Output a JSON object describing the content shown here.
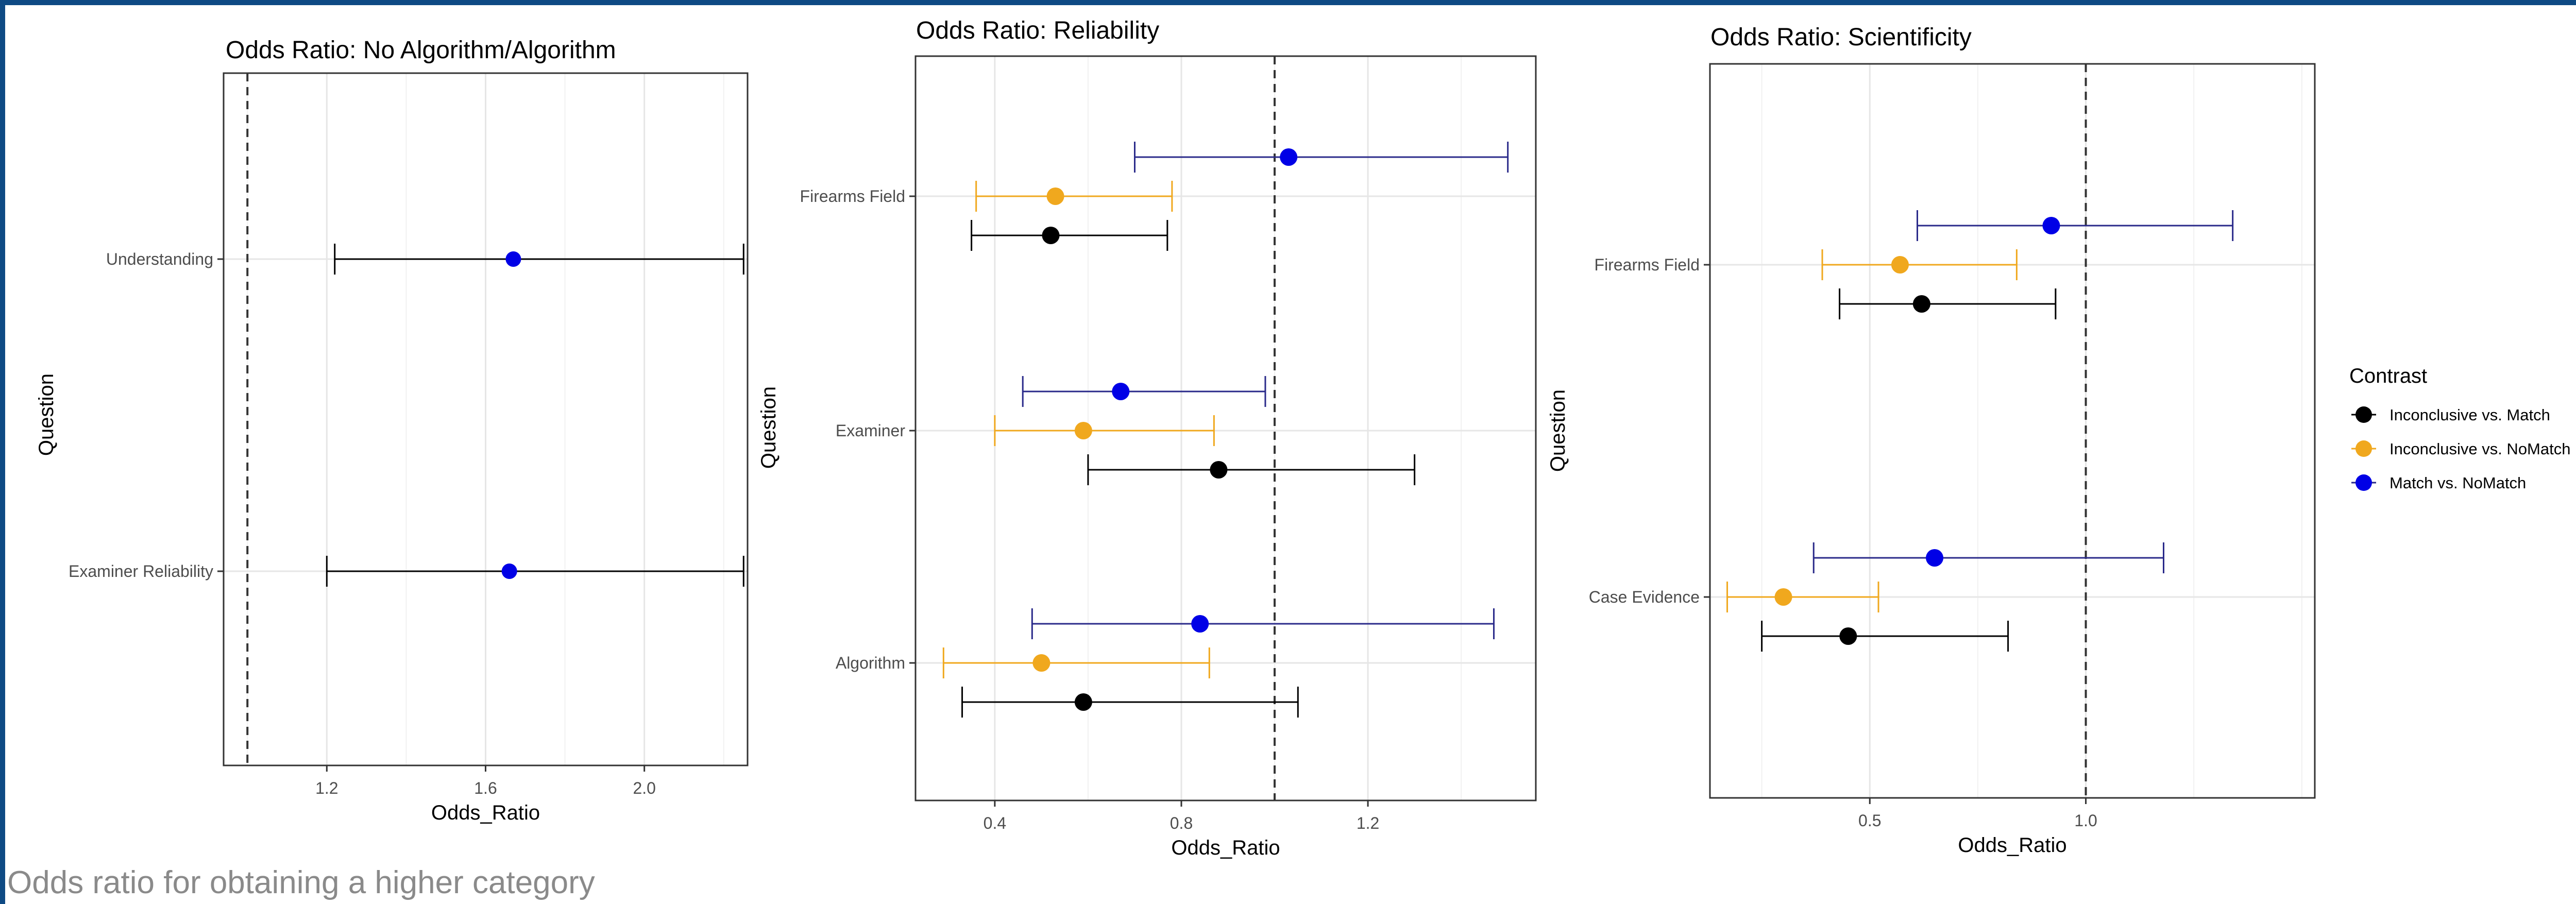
{
  "caption": "Odds ratio for obtaining a higher category",
  "colors": {
    "frame": "#0e4a84",
    "Inconclusive vs. Match": "#000000",
    "Inconclusive vs. NoMatch": "#f0a81e",
    "Match vs. NoMatch": "#0000e6",
    "Algorithm contrast": "#0000e6"
  },
  "legend": {
    "title": "Contrast",
    "placement": "right",
    "items": [
      "Inconclusive vs. Match",
      "Inconclusive vs. NoMatch",
      "Match vs. NoMatch"
    ]
  },
  "chart_data": [
    {
      "type": "forest",
      "title": "Odds Ratio: No Algorithm/Algorithm",
      "xlabel": "Odds_Ratio",
      "ylabel": "Question",
      "xlim": [
        0.94,
        2.26
      ],
      "xticks": [
        1.2,
        1.6,
        2.0
      ],
      "xtick_labels": [
        "1.2",
        "1.6",
        "2.0"
      ],
      "reference_line": 1.0,
      "grid": true,
      "categories": [
        "Examiner Reliability",
        "Understanding"
      ],
      "series": [
        {
          "values": [
            {
              "category": "Examiner Reliability",
              "estimate": 1.66,
              "lower": 1.2,
              "upper": 2.25
            },
            {
              "category": "Understanding",
              "estimate": 1.67,
              "lower": 1.22,
              "upper": 2.25
            }
          ]
        }
      ]
    },
    {
      "type": "forest",
      "title": "Odds Ratio: Reliability",
      "xlabel": "Odds_Ratio",
      "ylabel": "Question",
      "xlim": [
        0.23,
        1.56
      ],
      "xticks": [
        0.4,
        0.8,
        1.2
      ],
      "xtick_labels": [
        "0.4",
        "0.8",
        "1.2"
      ],
      "reference_line": 1.0,
      "grid": true,
      "categories": [
        "Algorithm",
        "Examiner",
        "Firearms Field"
      ],
      "series": [
        {
          "name": "Inconclusive vs. Match",
          "values": [
            {
              "category": "Algorithm",
              "estimate": 0.59,
              "lower": 0.33,
              "upper": 1.05
            },
            {
              "category": "Examiner",
              "estimate": 0.88,
              "lower": 0.6,
              "upper": 1.3
            },
            {
              "category": "Firearms Field",
              "estimate": 0.52,
              "lower": 0.35,
              "upper": 0.77
            }
          ]
        },
        {
          "name": "Inconclusive vs. NoMatch",
          "values": [
            {
              "category": "Algorithm",
              "estimate": 0.5,
              "lower": 0.29,
              "upper": 0.86
            },
            {
              "category": "Examiner",
              "estimate": 0.59,
              "lower": 0.4,
              "upper": 0.87
            },
            {
              "category": "Firearms Field",
              "estimate": 0.53,
              "lower": 0.36,
              "upper": 0.78
            }
          ]
        },
        {
          "name": "Match vs. NoMatch",
          "values": [
            {
              "category": "Algorithm",
              "estimate": 0.84,
              "lower": 0.48,
              "upper": 1.47
            },
            {
              "category": "Examiner",
              "estimate": 0.67,
              "lower": 0.46,
              "upper": 0.98
            },
            {
              "category": "Firearms Field",
              "estimate": 1.03,
              "lower": 0.7,
              "upper": 1.5
            }
          ]
        }
      ]
    },
    {
      "type": "forest",
      "title": "Odds Ratio: Scientificity",
      "xlabel": "Odds_Ratio",
      "ylabel": "Question",
      "xlim": [
        0.13,
        1.53
      ],
      "xticks": [
        0.5,
        1.0
      ],
      "xtick_labels": [
        "0.5",
        "1.0"
      ],
      "reference_line": 1.0,
      "grid": true,
      "categories": [
        "Case Evidence",
        "Firearms Field"
      ],
      "series": [
        {
          "name": "Inconclusive vs. Match",
          "values": [
            {
              "category": "Case Evidence",
              "estimate": 0.45,
              "lower": 0.25,
              "upper": 0.82
            },
            {
              "category": "Firearms Field",
              "estimate": 0.62,
              "lower": 0.43,
              "upper": 0.93
            }
          ]
        },
        {
          "name": "Inconclusive vs. NoMatch",
          "values": [
            {
              "category": "Case Evidence",
              "estimate": 0.3,
              "lower": 0.17,
              "upper": 0.52
            },
            {
              "category": "Firearms Field",
              "estimate": 0.57,
              "lower": 0.39,
              "upper": 0.84
            }
          ]
        },
        {
          "name": "Match vs. NoMatch",
          "values": [
            {
              "category": "Case Evidence",
              "estimate": 0.65,
              "lower": 0.37,
              "upper": 1.18
            },
            {
              "category": "Firearms Field",
              "estimate": 0.92,
              "lower": 0.61,
              "upper": 1.34
            }
          ]
        }
      ]
    }
  ]
}
